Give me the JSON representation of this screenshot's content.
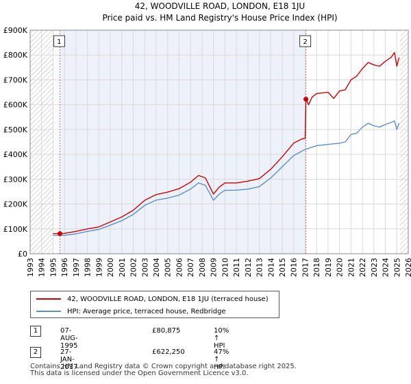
{
  "chart_data": {
    "type": "line",
    "title": "42, WOODVILLE ROAD, LONDON, E18 1JU",
    "subtitle": "Price paid vs. HM Land Registry's House Price Index (HPI)",
    "xlim": [
      1993,
      2026
    ],
    "ylim": [
      0,
      900000
    ],
    "x_ticks": [
      "1993",
      "1994",
      "1995",
      "1996",
      "1997",
      "1998",
      "1999",
      "2000",
      "2001",
      "2002",
      "2003",
      "2004",
      "2005",
      "2006",
      "2007",
      "2008",
      "2009",
      "2010",
      "2011",
      "2012",
      "2013",
      "2014",
      "2015",
      "2016",
      "2017",
      "2018",
      "2019",
      "2020",
      "2021",
      "2022",
      "2023",
      "2024",
      "2025",
      "2026"
    ],
    "y_ticks": [
      {
        "value": 0,
        "label": "£0"
      },
      {
        "value": 100000,
        "label": "£100K"
      },
      {
        "value": 200000,
        "label": "£200K"
      },
      {
        "value": 300000,
        "label": "£300K"
      },
      {
        "value": 400000,
        "label": "£400K"
      },
      {
        "value": 500000,
        "label": "£500K"
      },
      {
        "value": 600000,
        "label": "£600K"
      },
      {
        "value": 700000,
        "label": "£700K"
      },
      {
        "value": 800000,
        "label": "£800K"
      },
      {
        "value": 900000,
        "label": "£900K"
      }
    ],
    "hatched_ranges": [
      [
        1993,
        1995.0
      ],
      [
        2025.25,
        2026
      ]
    ],
    "shaded_range": [
      1995.6,
      2017.07
    ],
    "series": [
      {
        "name": "42, WOODVILLE ROAD, LONDON, E18 1JU (terraced house)",
        "color": "#cc0000",
        "points": [
          [
            1995.0,
            81000
          ],
          [
            1995.6,
            80875
          ],
          [
            1996,
            82000
          ],
          [
            1997,
            90000
          ],
          [
            1998,
            100000
          ],
          [
            1999,
            108000
          ],
          [
            2000,
            128000
          ],
          [
            2001,
            148000
          ],
          [
            2002,
            175000
          ],
          [
            2003,
            215000
          ],
          [
            2004,
            238000
          ],
          [
            2005,
            248000
          ],
          [
            2006,
            262000
          ],
          [
            2007,
            288000
          ],
          [
            2007.7,
            315000
          ],
          [
            2008.3,
            305000
          ],
          [
            2009.0,
            240000
          ],
          [
            2009.5,
            268000
          ],
          [
            2010,
            285000
          ],
          [
            2011,
            285000
          ],
          [
            2012,
            292000
          ],
          [
            2013,
            302000
          ],
          [
            2014,
            340000
          ],
          [
            2015,
            390000
          ],
          [
            2016,
            445000
          ],
          [
            2016.7,
            462000
          ],
          [
            2017.0,
            465000
          ],
          [
            2017.07,
            622250
          ],
          [
            2017.3,
            600000
          ],
          [
            2017.6,
            630000
          ],
          [
            2018,
            645000
          ],
          [
            2019,
            650000
          ],
          [
            2019.5,
            625000
          ],
          [
            2020,
            655000
          ],
          [
            2020.5,
            660000
          ],
          [
            2021,
            700000
          ],
          [
            2021.5,
            715000
          ],
          [
            2022,
            745000
          ],
          [
            2022.5,
            770000
          ],
          [
            2023,
            760000
          ],
          [
            2023.5,
            755000
          ],
          [
            2024,
            775000
          ],
          [
            2024.5,
            790000
          ],
          [
            2024.8,
            810000
          ],
          [
            2025.0,
            755000
          ],
          [
            2025.2,
            790000
          ]
        ]
      },
      {
        "name": "HPI: Average price, terraced house, Redbridge",
        "color": "#5b8ec9",
        "points": [
          [
            1995.0,
            74000
          ],
          [
            1995.6,
            74000
          ],
          [
            1996,
            74000
          ],
          [
            1997,
            80000
          ],
          [
            1998,
            90000
          ],
          [
            1999,
            98000
          ],
          [
            2000,
            115000
          ],
          [
            2001,
            133000
          ],
          [
            2002,
            158000
          ],
          [
            2003,
            195000
          ],
          [
            2004,
            216000
          ],
          [
            2005,
            224000
          ],
          [
            2006,
            236000
          ],
          [
            2007,
            260000
          ],
          [
            2007.7,
            285000
          ],
          [
            2008.3,
            275000
          ],
          [
            2009.0,
            215000
          ],
          [
            2009.5,
            240000
          ],
          [
            2010,
            255000
          ],
          [
            2011,
            256000
          ],
          [
            2012,
            260000
          ],
          [
            2013,
            270000
          ],
          [
            2014,
            305000
          ],
          [
            2015,
            350000
          ],
          [
            2016,
            395000
          ],
          [
            2017,
            420000
          ],
          [
            2018,
            435000
          ],
          [
            2019,
            440000
          ],
          [
            2020,
            445000
          ],
          [
            2020.5,
            450000
          ],
          [
            2021,
            480000
          ],
          [
            2021.5,
            485000
          ],
          [
            2022,
            510000
          ],
          [
            2022.5,
            525000
          ],
          [
            2023,
            515000
          ],
          [
            2023.5,
            510000
          ],
          [
            2024,
            520000
          ],
          [
            2024.6,
            530000
          ],
          [
            2024.8,
            535000
          ],
          [
            2025.0,
            500000
          ],
          [
            2025.2,
            525000
          ]
        ]
      }
    ],
    "sales": [
      {
        "label": "1",
        "x": 1995.6,
        "y": 80875
      },
      {
        "label": "2",
        "x": 2017.07,
        "y": 622250
      }
    ]
  },
  "legend": {
    "property_label": "42, WOODVILLE ROAD, LONDON, E18 1JU (terraced house)",
    "hpi_label": "HPI: Average price, terraced house, Redbridge",
    "property_color": "#cc0000",
    "hpi_color": "#5b8ec9"
  },
  "transactions": [
    {
      "num": "1",
      "date": "07-AUG-1995",
      "price": "£80,875",
      "hpi": "10% ↑ HPI"
    },
    {
      "num": "2",
      "date": "27-JAN-2017",
      "price": "£622,250",
      "hpi": "47% ↑ HPI"
    }
  ],
  "footer": {
    "line1": "Contains HM Land Registry data © Crown copyright and database right 2025.",
    "line2": "This data is licensed under the Open Government Licence v3.0."
  }
}
